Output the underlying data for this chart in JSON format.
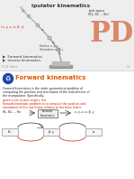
{
  "background_color": "#ffffff",
  "top_bg": "#e8e8e8",
  "title": "ipulator kinematics",
  "title_color": "#333333",
  "task_space": "(x, y, z, α, β, γ)",
  "joint_space_line1": "Joint space",
  "joint_space_line2": "(θ1, θ2 ... θn)",
  "position_label": "Position: x, y, z",
  "orientation_label": "Orientation: α, β, γ",
  "bullet1": "▶  Forward kinematics",
  "bullet2": "▶  Inverse kinematics",
  "footer_left": "R C B. Ronse",
  "footer_right": "4-1",
  "subtitle": "Forward kinematics",
  "subtitle_color": "#e05a00",
  "body1": "Forward kinematics is the static geometrical problem of",
  "body2": "computing the position and orientation of the end-effector of",
  "body3": "the manipulator. Specifically, ",
  "body4": "given a set of joint angles, the",
  "body5": "forward kinematic problem is to compute the position and",
  "body6": "orientation of the tool frame relative to the base frame.",
  "body_color": "#222222",
  "body_red": "#cc2200",
  "diag_input": "θ1, θ2, ... θn",
  "diag_box": "Forward\nkinematics",
  "diag_output": "x, y, z, α, β, γ",
  "pdf_color": "#cc3300",
  "arm_color": "#aaaaaa",
  "arm_joint_color": "#888888",
  "label_red": "#dd2200"
}
